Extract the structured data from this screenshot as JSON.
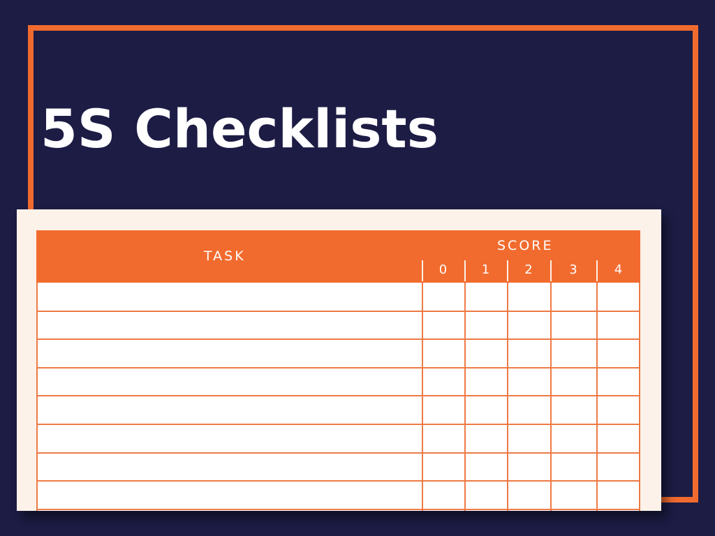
{
  "title": "5S Checklists",
  "table": {
    "task_header": "TASK",
    "score_header": "SCORE",
    "score_levels": [
      "0",
      "1",
      "2",
      "3",
      "4"
    ],
    "rows": 8
  },
  "colors": {
    "background": "#1c1c45",
    "accent": "#f26b2e",
    "paper": "#fdf2e9"
  }
}
